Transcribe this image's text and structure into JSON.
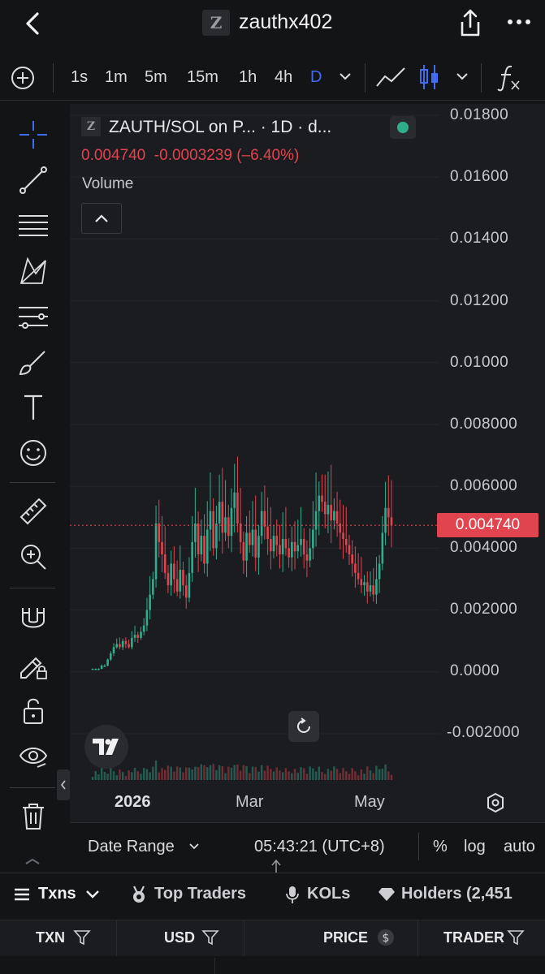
{
  "header": {
    "title": "zauthx402",
    "logo_letter": "Z",
    "back_icon": "back-chevron-icon",
    "share_icon": "share-icon",
    "more_icon": "more-icon"
  },
  "timeframes": [
    "1s",
    "1m",
    "5m",
    "15m",
    "1h",
    "4h",
    "D"
  ],
  "active_timeframe": "D",
  "accent_color": "#3f6cf0",
  "up_color": "#2fae8e",
  "down_color": "#e0444f",
  "legend": {
    "logo_letter": "Z",
    "symbol": "ZAUTH/SOL on P... · 1D · d...",
    "price_line": "0.004740  -0.0003239 (–6.40%)",
    "volume_label": "Volume"
  },
  "price_tag": "0.004740",
  "bottom_bar": {
    "date_range": "Date Range",
    "time": "05:43:21 (UTC+8)",
    "percent": "%",
    "log": "log",
    "auto": "auto"
  },
  "tabs": {
    "txns": "Txns",
    "top_traders": "Top Traders",
    "kols": "KOLs",
    "holders": "Holders (2,451"
  },
  "columns": {
    "txn": "TXN",
    "usd": "USD",
    "price": "PRICE",
    "trader": "TRADER"
  },
  "chart_data": {
    "type": "candlestick",
    "y_tick_labels": [
      "0.01800",
      "0.01600",
      "0.01400",
      "0.01200",
      "0.01000",
      "0.008000",
      "0.006000",
      "0.004000",
      "0.002000",
      "0.0000",
      "-0.002000"
    ],
    "x_tick_labels": [
      "2026",
      "Mar",
      "May"
    ],
    "ylim": [
      -0.002,
      0.018
    ],
    "last_price": 0.00474,
    "series_approx_close": [
      0.0001,
      0.0001,
      0.0001,
      0.0002,
      0.0002,
      0.0004,
      0.0006,
      0.0008,
      0.0009,
      0.0008,
      0.001,
      0.0009,
      0.0008,
      0.0011,
      0.0012,
      0.0011,
      0.0013,
      0.0015,
      0.002,
      0.0025,
      0.003,
      0.0048,
      0.0042,
      0.0038,
      0.0032,
      0.0028,
      0.0035,
      0.003,
      0.0026,
      0.0033,
      0.0028,
      0.0024,
      0.0032,
      0.0042,
      0.0048,
      0.0038,
      0.0044,
      0.0035,
      0.0046,
      0.0052,
      0.004,
      0.0048,
      0.0055,
      0.0045,
      0.005,
      0.0044,
      0.0053,
      0.0058,
      0.0048,
      0.0042,
      0.0036,
      0.0045,
      0.0041,
      0.0046,
      0.0037,
      0.0044,
      0.0052,
      0.0047,
      0.0043,
      0.0039,
      0.0044,
      0.0041,
      0.0038,
      0.0043,
      0.004,
      0.0037,
      0.0042,
      0.0039,
      0.0041,
      0.0043,
      0.0038,
      0.0036,
      0.004,
      0.0046,
      0.0052,
      0.0057,
      0.0055,
      0.0051,
      0.0054,
      0.0049,
      0.0052,
      0.0048,
      0.0045,
      0.0043,
      0.0041,
      0.0038,
      0.0035,
      0.0032,
      0.003,
      0.0028,
      0.0029,
      0.0026,
      0.0028,
      0.0025,
      0.003,
      0.0035,
      0.0045,
      0.0053,
      0.005,
      0.00474
    ]
  }
}
